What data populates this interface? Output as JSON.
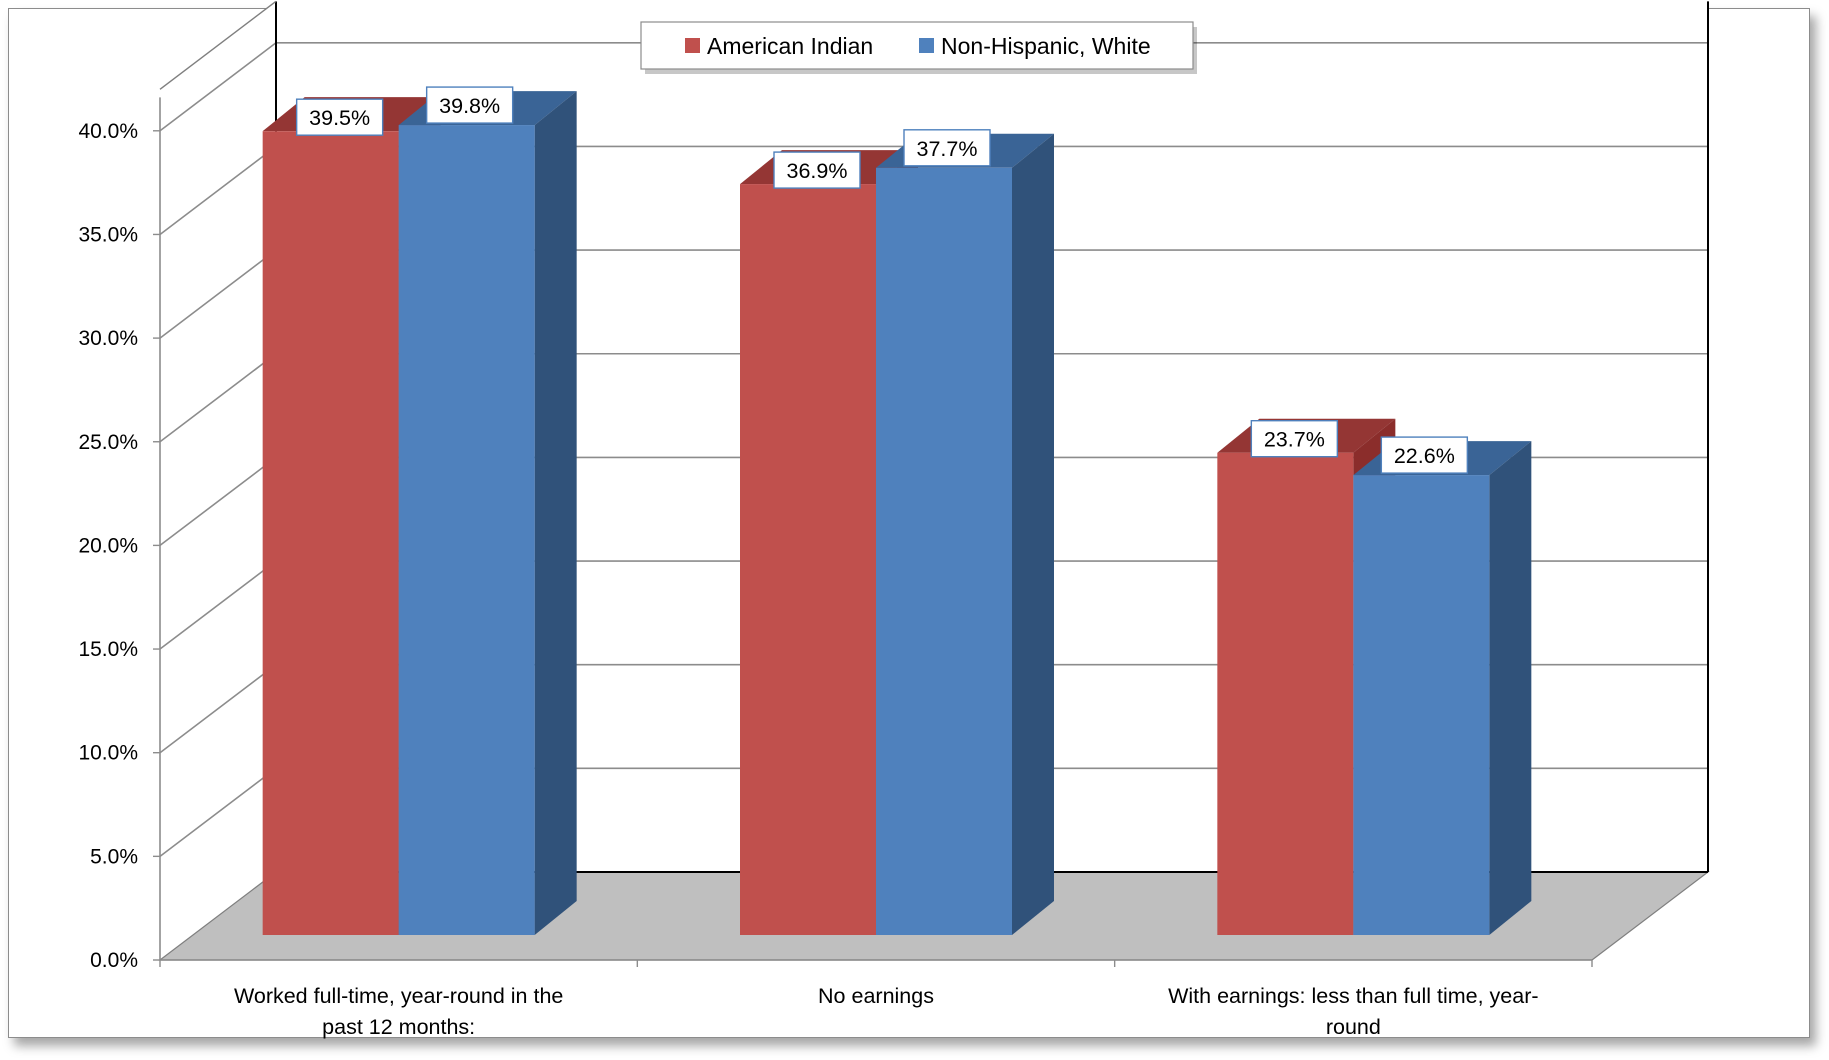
{
  "chart_data": {
    "type": "bar",
    "style": "3d-clustered",
    "categories": [
      [
        "Worked full-time, year-round in the",
        "past 12 months:"
      ],
      [
        "No earnings"
      ],
      [
        "With earnings: less than full time, year-",
        "round"
      ]
    ],
    "series": [
      {
        "name": "American Indian",
        "values": [
          39.5,
          36.9,
          23.7
        ],
        "labels": [
          "39.5%",
          "36.9%",
          "23.7%"
        ],
        "color": "#c0504d",
        "top_color": "#943634",
        "side_color": "#8b2d2b"
      },
      {
        "name": "Non-Hispanic, White",
        "values": [
          39.8,
          37.7,
          22.6
        ],
        "labels": [
          "39.8%",
          "37.7%",
          "22.6%"
        ],
        "color": "#4f81bd",
        "top_color": "#3a6496",
        "side_color": "#30527a"
      }
    ],
    "ylim": [
      0,
      40
    ],
    "ytick_values": [
      0,
      5,
      10,
      15,
      20,
      25,
      30,
      35,
      40
    ],
    "yticks": [
      "0.0%",
      "5.0%",
      "10.0%",
      "15.0%",
      "20.0%",
      "25.0%",
      "30.0%",
      "35.0%",
      "40.0%"
    ],
    "grid": true,
    "legend_position": "top-center",
    "colors": {
      "floor": "#bfbfbf",
      "grid": "#8c8c8c",
      "label_border": "#4f81bd"
    }
  }
}
